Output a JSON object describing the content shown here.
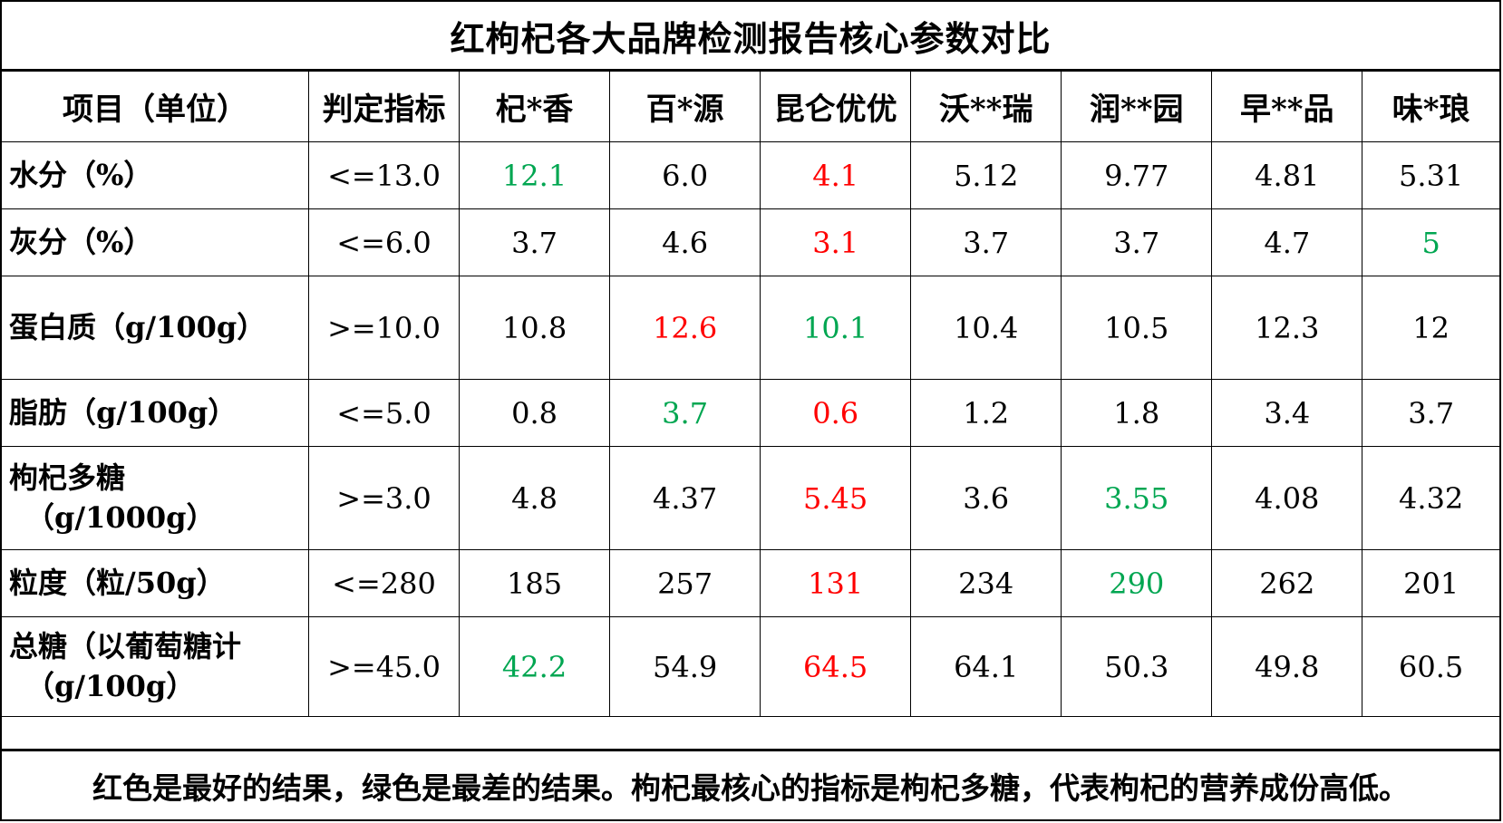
{
  "colors": {
    "best": "#ff0000",
    "worst": "#00a651",
    "normal": "#000000"
  },
  "chart_data": {
    "type": "table",
    "title": "红枸杞各大品牌检测报告核心参数对比",
    "columns": [
      "项目（单位）",
      "判定指标",
      "杞*香",
      "百*源",
      "昆仑优优",
      "沃**瑞",
      "润**园",
      "早**品",
      "味*琅"
    ],
    "rows": [
      {
        "label": [
          "水分（%）"
        ],
        "standard": "<=13.0",
        "cells": [
          {
            "v": "12.1",
            "c": "green"
          },
          {
            "v": "6.0",
            "c": "black"
          },
          {
            "v": "4.1",
            "c": "red"
          },
          {
            "v": "5.12",
            "c": "black"
          },
          {
            "v": "9.77",
            "c": "black"
          },
          {
            "v": "4.81",
            "c": "black"
          },
          {
            "v": "5.31",
            "c": "black"
          }
        ]
      },
      {
        "label": [
          "灰分（%）"
        ],
        "standard": "<=6.0",
        "cells": [
          {
            "v": "3.7",
            "c": "black"
          },
          {
            "v": "4.6",
            "c": "black"
          },
          {
            "v": "3.1",
            "c": "red"
          },
          {
            "v": "3.7",
            "c": "black"
          },
          {
            "v": "3.7",
            "c": "black"
          },
          {
            "v": "4.7",
            "c": "black"
          },
          {
            "v": "5",
            "c": "green"
          }
        ]
      },
      {
        "label": [
          "蛋白质（g/100g）"
        ],
        "standard": ">=10.0",
        "cells": [
          {
            "v": "10.8",
            "c": "black"
          },
          {
            "v": "12.6",
            "c": "red"
          },
          {
            "v": "10.1",
            "c": "green"
          },
          {
            "v": "10.4",
            "c": "black"
          },
          {
            "v": "10.5",
            "c": "black"
          },
          {
            "v": "12.3",
            "c": "black"
          },
          {
            "v": "12",
            "c": "black"
          }
        ]
      },
      {
        "label": [
          "脂肪（g/100g）"
        ],
        "standard": "<=5.0",
        "cells": [
          {
            "v": "0.8",
            "c": "black"
          },
          {
            "v": "3.7",
            "c": "green"
          },
          {
            "v": "0.6",
            "c": "red"
          },
          {
            "v": "1.2",
            "c": "black"
          },
          {
            "v": "1.8",
            "c": "black"
          },
          {
            "v": "3.4",
            "c": "black"
          },
          {
            "v": "3.7",
            "c": "black"
          }
        ]
      },
      {
        "label": [
          "枸杞多糖",
          "（g/1000g）"
        ],
        "standard": ">=3.0",
        "cells": [
          {
            "v": "4.8",
            "c": "black"
          },
          {
            "v": "4.37",
            "c": "black"
          },
          {
            "v": "5.45",
            "c": "red"
          },
          {
            "v": "3.6",
            "c": "black"
          },
          {
            "v": "3.55",
            "c": "green"
          },
          {
            "v": "4.08",
            "c": "black"
          },
          {
            "v": "4.32",
            "c": "black"
          }
        ]
      },
      {
        "label": [
          "粒度（粒/50g）"
        ],
        "standard": "<=280",
        "cells": [
          {
            "v": "185",
            "c": "black"
          },
          {
            "v": "257",
            "c": "black"
          },
          {
            "v": "131",
            "c": "red"
          },
          {
            "v": "234",
            "c": "black"
          },
          {
            "v": "290",
            "c": "green"
          },
          {
            "v": "262",
            "c": "black"
          },
          {
            "v": "201",
            "c": "black"
          }
        ]
      },
      {
        "label": [
          "总糖（以葡萄糖计",
          "（g/100g）"
        ],
        "standard": ">=45.0",
        "cells": [
          {
            "v": "42.2",
            "c": "green"
          },
          {
            "v": "54.9",
            "c": "black"
          },
          {
            "v": "64.5",
            "c": "red"
          },
          {
            "v": "64.1",
            "c": "black"
          },
          {
            "v": "50.3",
            "c": "black"
          },
          {
            "v": "49.8",
            "c": "black"
          },
          {
            "v": "60.5",
            "c": "black"
          }
        ]
      }
    ],
    "footnote": "红色是最好的结果，绿色是最差的结果。枸杞最核心的指标是枸杞多糖，代表枸杞的营养成份高低。"
  }
}
